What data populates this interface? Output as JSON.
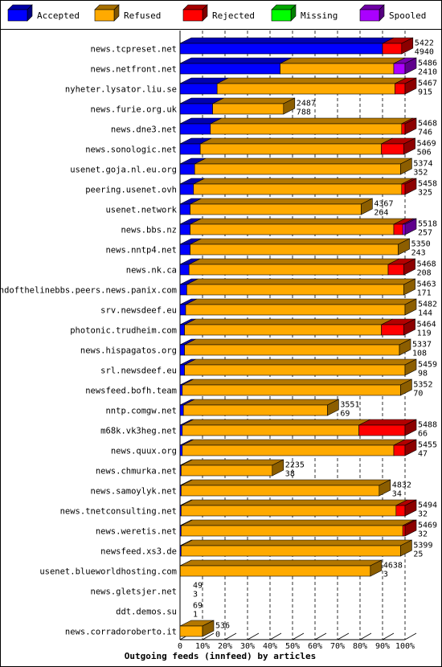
{
  "chart_data": {
    "type": "bar",
    "orientation": "horizontal",
    "stacked": true,
    "title": "",
    "xlabel": "Outgoing feeds (innfeed) by articles",
    "xlim": [
      0,
      100
    ],
    "xunit": "%",
    "x_ticks": [
      "0",
      "10%",
      "20%",
      "30%",
      "40%",
      "50%",
      "60%",
      "70%",
      "80%",
      "90%",
      "100%"
    ],
    "legend_position": "top",
    "series": [
      {
        "name": "Accepted",
        "color": "#0000ff"
      },
      {
        "name": "Refused",
        "color": "#ffaa00"
      },
      {
        "name": "Rejected",
        "color": "#ff0000"
      },
      {
        "name": "Missing",
        "color": "#00ff00"
      },
      {
        "name": "Spooled",
        "color": "#aa00ff"
      }
    ],
    "rows": [
      {
        "host": "news.tcpreset.net",
        "offered": "5422",
        "accepted": "4940",
        "shares": [
          90.0,
          0,
          8.5,
          0,
          0
        ]
      },
      {
        "host": "news.netfront.net",
        "offered": "5486",
        "accepted": "2410",
        "shares": [
          44.5,
          50.5,
          0,
          0,
          5.0
        ]
      },
      {
        "host": "nyheter.lysator.liu.se",
        "offered": "5467",
        "accepted": "915",
        "shares": [
          16.5,
          79.0,
          4.5,
          0,
          0
        ]
      },
      {
        "host": "news.furie.org.uk",
        "offered": "2487",
        "accepted": "788",
        "shares": [
          14.5,
          31.5,
          0,
          0,
          0
        ]
      },
      {
        "host": "news.dne3.net",
        "offered": "5468",
        "accepted": "746",
        "shares": [
          13.5,
          85.0,
          1.5,
          0,
          0
        ]
      },
      {
        "host": "news.sonologic.net",
        "offered": "5469",
        "accepted": "506",
        "shares": [
          9.0,
          80.5,
          10.0,
          0,
          0
        ]
      },
      {
        "host": "usenet.goja.nl.eu.org",
        "offered": "5374",
        "accepted": "352",
        "shares": [
          6.5,
          91.5,
          0,
          0,
          0
        ]
      },
      {
        "host": "peering.usenet.ovh",
        "offered": "5458",
        "accepted": "325",
        "shares": [
          6.0,
          92.5,
          1.5,
          0,
          0
        ]
      },
      {
        "host": "usenet.network",
        "offered": "4367",
        "accepted": "264",
        "shares": [
          4.5,
          76.0,
          0,
          0,
          0
        ]
      },
      {
        "host": "news.bbs.nz",
        "offered": "5518",
        "accepted": "257",
        "shares": [
          4.5,
          90.5,
          4.0,
          0,
          1.0
        ]
      },
      {
        "host": "news.nntp4.net",
        "offered": "5350",
        "accepted": "243",
        "shares": [
          4.5,
          92.5,
          0,
          0,
          0
        ]
      },
      {
        "host": "news.nk.ca",
        "offered": "5468",
        "accepted": "208",
        "shares": [
          4.0,
          88.5,
          7.0,
          0,
          0
        ]
      },
      {
        "host": "endofthelinebbs.peers.news.panix.com",
        "offered": "5463",
        "accepted": "171",
        "shares": [
          3.0,
          96.5,
          0,
          0,
          0
        ]
      },
      {
        "host": "srv.newsdeef.eu",
        "offered": "5482",
        "accepted": "144",
        "shares": [
          2.5,
          97.5,
          0,
          0,
          0
        ]
      },
      {
        "host": "photonic.trudheim.com",
        "offered": "5464",
        "accepted": "119",
        "shares": [
          2.0,
          87.5,
          10.0,
          0,
          0
        ]
      },
      {
        "host": "news.hispagatos.org",
        "offered": "5337",
        "accepted": "108",
        "shares": [
          2.0,
          95.5,
          0,
          0,
          0
        ]
      },
      {
        "host": "srl.newsdeef.eu",
        "offered": "5459",
        "accepted": "98",
        "shares": [
          2.0,
          98.0,
          0,
          0,
          0
        ]
      },
      {
        "host": "newsfeed.bofh.team",
        "offered": "5352",
        "accepted": "70",
        "shares": [
          1.0,
          97.0,
          0,
          0,
          0
        ]
      },
      {
        "host": "nntp.comgw.net",
        "offered": "3551",
        "accepted": "69",
        "shares": [
          1.5,
          64.0,
          0,
          0,
          0
        ]
      },
      {
        "host": "m68k.vk3heg.net",
        "offered": "5488",
        "accepted": "66",
        "shares": [
          1.0,
          78.5,
          20.5,
          0,
          0
        ]
      },
      {
        "host": "news.quux.org",
        "offered": "5455",
        "accepted": "47",
        "shares": [
          1.0,
          94.0,
          5.0,
          0,
          0
        ]
      },
      {
        "host": "news.chmurka.net",
        "offered": "2235",
        "accepted": "38",
        "shares": [
          0.5,
          40.5,
          0,
          0,
          0
        ]
      },
      {
        "host": "news.samoylyk.net",
        "offered": "4832",
        "accepted": "34",
        "shares": [
          0.5,
          88.0,
          0,
          0,
          0
        ]
      },
      {
        "host": "news.tnetconsulting.net",
        "offered": "5494",
        "accepted": "32",
        "shares": [
          0.5,
          95.5,
          4.0,
          0,
          0
        ]
      },
      {
        "host": "news.weretis.net",
        "offered": "5469",
        "accepted": "32",
        "shares": [
          0.5,
          98.5,
          1.0,
          0,
          0
        ]
      },
      {
        "host": "newsfeed.xs3.de",
        "offered": "5399",
        "accepted": "25",
        "shares": [
          0.5,
          97.5,
          0,
          0,
          0
        ]
      },
      {
        "host": "usenet.blueworldhosting.com",
        "offered": "4638",
        "accepted": "3",
        "shares": [
          0.1,
          84.5,
          0,
          0,
          0
        ]
      },
      {
        "host": "news.gletsjer.net",
        "offered": "49",
        "accepted": "3",
        "shares": [
          0,
          0,
          0,
          0,
          0
        ]
      },
      {
        "host": "ddt.demos.su",
        "offered": "69",
        "accepted": "1",
        "shares": [
          0,
          0,
          0,
          0,
          0
        ]
      },
      {
        "host": "news.corradoroberto.it",
        "offered": "536",
        "accepted": "0",
        "shares": [
          0,
          10.0,
          0,
          0,
          0
        ]
      }
    ]
  }
}
